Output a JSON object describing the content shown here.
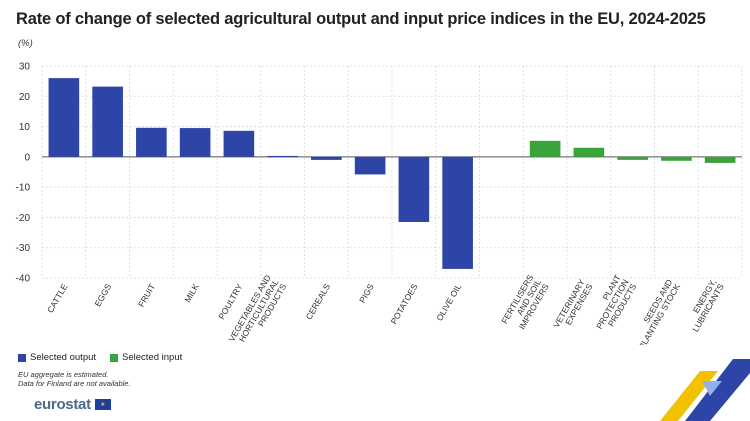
{
  "title": "Rate of change of selected agricultural output and input price indices in the EU, 2024-2025",
  "unit": "(%)",
  "legend": {
    "output_label": "Selected output",
    "input_label": "Selected input"
  },
  "notes": {
    "line1": "EU aggregate is estimated.",
    "line2": "Data for Finland are not available."
  },
  "brand": {
    "name": "eurostat",
    "flag_icon": "eu-flag-icon"
  },
  "colors": {
    "output": "#2e45a8",
    "input": "#3aa33a",
    "grid": "#d9d9d9",
    "deco_yellow": "#f2c200",
    "deco_blue": "#2e45a8"
  },
  "chart_data": {
    "type": "bar",
    "categories": [
      "CATTLE",
      "EGGS",
      "FRUIT",
      "MILK",
      "POULTRY",
      "VEGETABLES AND HORTICULTURAL PRODUCTS",
      "CEREALS",
      "PIGS",
      "POTATOES",
      "OLIVE OIL",
      "",
      "FERTILISERS AND SOIL IMPROVERS",
      "VETERINARY EXPENSES",
      "PLANT PROTECTION PRODUCTS",
      "SEEDS AND PLANTING STOCK",
      "ENERGY, LUBRICANTS"
    ],
    "series": [
      {
        "name": "Selected output",
        "values": [
          26,
          23.2,
          9.6,
          9.5,
          8.6,
          0.3,
          -1.0,
          -5.8,
          -21.5,
          -37,
          null,
          null,
          null,
          null,
          null,
          null
        ]
      },
      {
        "name": "Selected input",
        "values": [
          null,
          null,
          null,
          null,
          null,
          null,
          null,
          null,
          null,
          null,
          null,
          5.3,
          3.0,
          -1.0,
          -1.3,
          -2.0
        ]
      }
    ],
    "ylim": [
      -40,
      30
    ],
    "yticks": [
      30,
      20,
      10,
      0,
      -10,
      -20,
      -30,
      -40
    ],
    "grid": true,
    "legend_position": "bottom-left"
  }
}
